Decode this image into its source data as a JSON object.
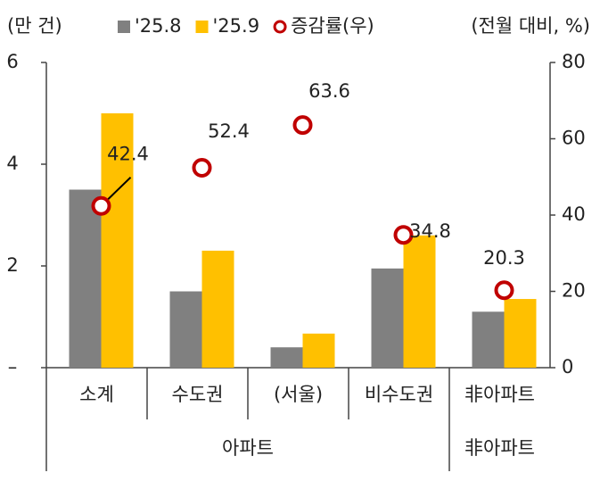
{
  "chart_data": {
    "type": "bar",
    "y_unit_label": "(만 건)",
    "y2_unit_label": "(전월 대비, %)",
    "categories": [
      "소계",
      "수도권",
      "(서울)",
      "비수도권",
      "非아파트"
    ],
    "groups": [
      "아파트",
      "非아파트"
    ],
    "series": [
      {
        "name": "'25.8",
        "color": "#808080",
        "values": [
          3.5,
          1.5,
          0.4,
          1.95,
          1.1
        ]
      },
      {
        "name": "'25.9",
        "color": "#FFC000",
        "values": [
          5.0,
          2.3,
          0.67,
          2.6,
          1.35
        ]
      },
      {
        "name": "증감률(우)",
        "type": "scatter",
        "axis": "y2",
        "color": "#C00000",
        "values": [
          42.4,
          52.4,
          63.6,
          34.8,
          20.3
        ]
      }
    ],
    "ylim": [
      0,
      6
    ],
    "yticks": [
      {
        "value": 0,
        "label": "–"
      },
      2,
      4,
      6
    ],
    "y2lim": [
      0,
      80
    ],
    "y2ticks": [
      0,
      20,
      40,
      60,
      80
    ]
  }
}
